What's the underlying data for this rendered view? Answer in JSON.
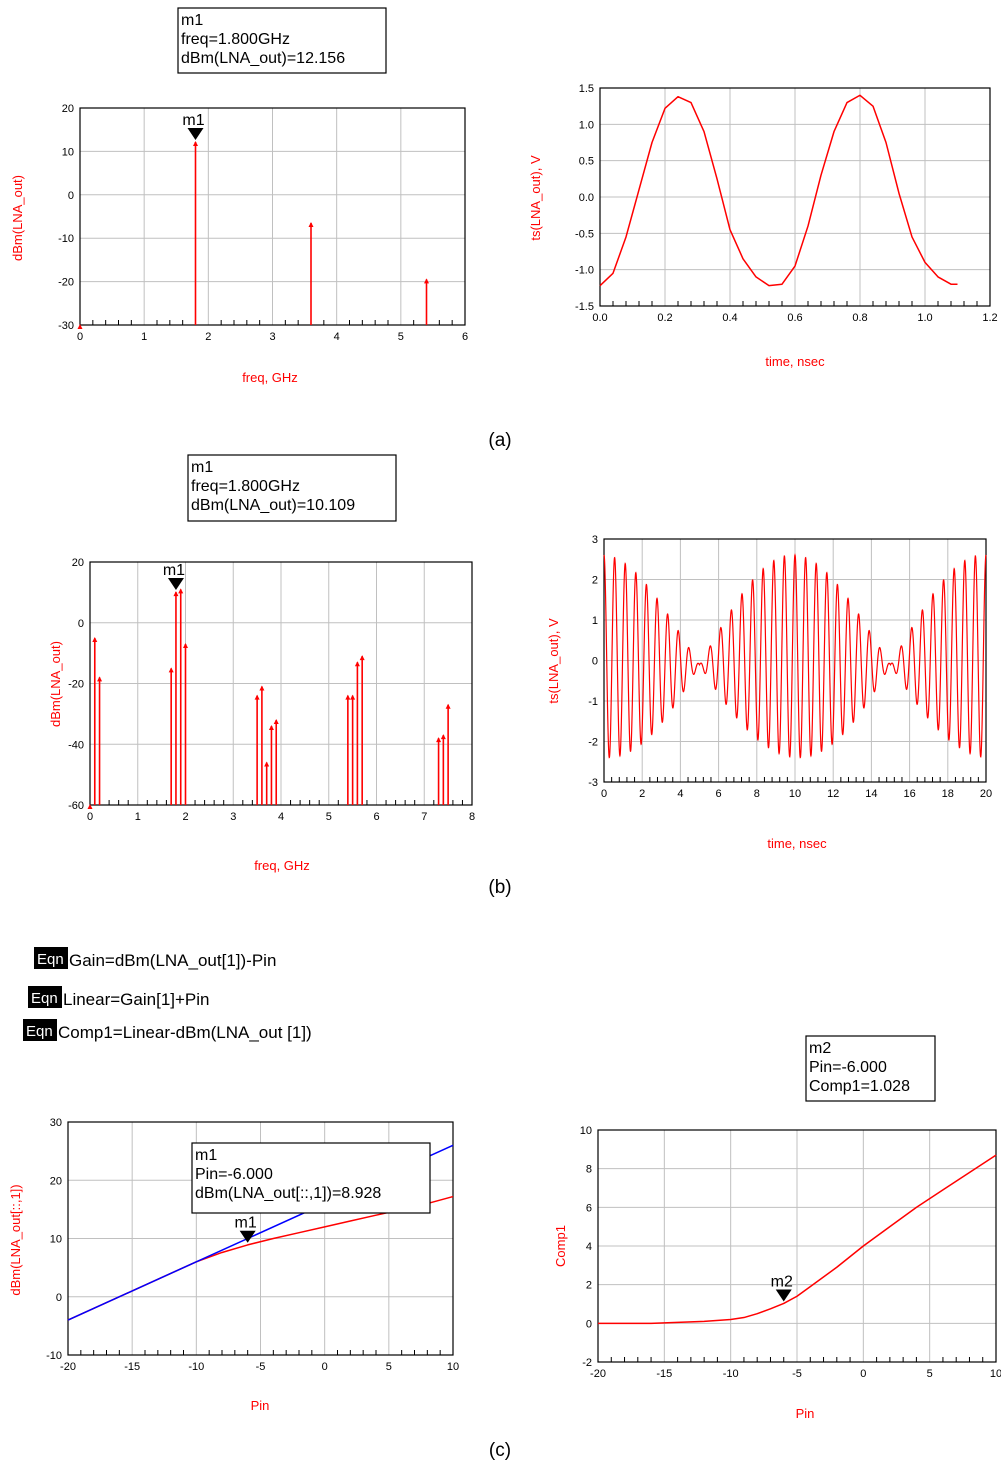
{
  "captions": [
    "(a)",
    "(b)",
    "(c)"
  ],
  "equations": {
    "badge": "Eqn",
    "lines": [
      "Gain=dBm(LNA_out[1])-Pin",
      "Linear=Gain[1]+Pin",
      "Comp1=Linear-dBm(LNA_out [1])"
    ]
  },
  "colors": {
    "trace_red": "#ff0000",
    "trace_blue": "#0000ff",
    "grid": "#c0c0c0"
  },
  "chart_data": [
    {
      "id": "a_spectrum",
      "type": "bar",
      "xlabel": "freq, GHz",
      "ylabel": "dBm(LNA_out)",
      "xlim": [
        0,
        6
      ],
      "ylim": [
        -30,
        20
      ],
      "xticks": [
        "0",
        "1",
        "2",
        "3",
        "4",
        "5",
        "6"
      ],
      "yticks": [
        "-30",
        "-20",
        "-10",
        "0",
        "10",
        "20"
      ],
      "x": [
        0,
        1.8,
        3.6,
        5.4
      ],
      "values": [
        -30,
        12.156,
        -6.5,
        -19.5
      ],
      "marker": {
        "name": "m1",
        "x": 1.8,
        "y": 12.156,
        "lines": [
          "m1",
          "freq=1.800GHz",
          "dBm(LNA_out)=12.156"
        ]
      }
    },
    {
      "id": "a_time",
      "type": "line",
      "xlabel": "time, nsec",
      "ylabel": "ts(LNA_out), V",
      "xlim": [
        0,
        1.2
      ],
      "ylim": [
        -1.5,
        1.5
      ],
      "xticks": [
        "0.0",
        "0.2",
        "0.4",
        "0.6",
        "0.8",
        "1.0",
        "1.2"
      ],
      "yticks": [
        "-1.5",
        "-1.0",
        "-0.5",
        "0.0",
        "0.5",
        "1.0",
        "1.5"
      ],
      "series": [
        {
          "x": [
            0,
            0.04,
            0.08,
            0.12,
            0.16,
            0.2,
            0.24,
            0.28,
            0.32,
            0.36,
            0.4,
            0.44,
            0.48,
            0.52,
            0.56,
            0.6,
            0.64,
            0.68,
            0.72,
            0.76,
            0.8,
            0.84,
            0.88,
            0.92,
            0.96,
            1.0,
            1.04,
            1.08,
            1.1
          ],
          "values": [
            -1.22,
            -1.05,
            -0.55,
            0.1,
            0.75,
            1.22,
            1.38,
            1.3,
            0.9,
            0.25,
            -0.45,
            -0.85,
            -1.1,
            -1.22,
            -1.2,
            -0.95,
            -0.4,
            0.3,
            0.9,
            1.3,
            1.4,
            1.25,
            0.75,
            0.05,
            -0.55,
            -0.9,
            -1.1,
            -1.2,
            -1.2
          ]
        }
      ]
    },
    {
      "id": "b_spectrum",
      "type": "bar",
      "xlabel": "freq, GHz",
      "ylabel": "dBm(LNA_out)",
      "xlim": [
        0,
        8
      ],
      "ylim": [
        -60,
        20
      ],
      "xticks": [
        "0",
        "1",
        "2",
        "3",
        "4",
        "5",
        "6",
        "7",
        "8"
      ],
      "yticks": [
        "-60",
        "-40",
        "-20",
        "0",
        "20"
      ],
      "x": [
        0.0,
        0.1,
        0.2,
        1.7,
        1.8,
        1.9,
        2.0,
        3.5,
        3.6,
        3.7,
        3.8,
        3.9,
        5.4,
        5.5,
        5.6,
        5.7,
        7.3,
        7.4,
        7.5
      ],
      "values": [
        -60,
        -5,
        -18,
        -15,
        10.1,
        11,
        -7,
        -24,
        -21,
        -46,
        -34,
        -32,
        -24,
        -24,
        -13,
        -11,
        -38,
        -37,
        -27
      ],
      "marker": {
        "name": "m1",
        "x": 1.8,
        "y": 10.109,
        "lines": [
          "m1",
          "freq=1.800GHz",
          "dBm(LNA_out)=10.109"
        ]
      }
    },
    {
      "id": "b_time",
      "type": "line",
      "xlabel": "time, nsec",
      "ylabel": "ts(LNA_out), V",
      "xlim": [
        0,
        20
      ],
      "ylim": [
        -3,
        3
      ],
      "xticks": [
        "0",
        "2",
        "4",
        "6",
        "8",
        "10",
        "12",
        "14",
        "16",
        "18",
        "20"
      ],
      "yticks": [
        "-3",
        "-2",
        "-1",
        "0",
        "1",
        "2",
        "3"
      ],
      "series": [
        {
          "carrier_ghz": 1.8,
          "beat_period_ns": 10,
          "peak_v": 2.5
        }
      ]
    },
    {
      "id": "c_gain",
      "type": "line",
      "xlabel": "Pin",
      "ylabel": "dBm(LNA_out[::,1])",
      "xlim": [
        -20,
        10
      ],
      "ylim": [
        -10,
        30
      ],
      "xticks": [
        "-20",
        "-15",
        "-10",
        "-5",
        "0",
        "5",
        "10"
      ],
      "yticks": [
        "-10",
        "0",
        "10",
        "20",
        "30"
      ],
      "series": [
        {
          "color": "red",
          "x": [
            -20,
            -15,
            -12,
            -10,
            -8,
            -6,
            -4,
            -2,
            0,
            2,
            4,
            6,
            8,
            10
          ],
          "values": [
            -4,
            1,
            4,
            6,
            7.6,
            8.9,
            10,
            11,
            12,
            13,
            14,
            15,
            16,
            17.2
          ]
        },
        {
          "color": "blue",
          "x": [
            -20,
            10
          ],
          "values": [
            -4,
            26
          ]
        }
      ],
      "marker": {
        "name": "m1",
        "x": -6,
        "y": 8.928,
        "lines": [
          "m1",
          "Pin=-6.000",
          "dBm(LNA_out[::,1])=8.928"
        ]
      }
    },
    {
      "id": "c_comp",
      "type": "line",
      "xlabel": "Pin",
      "ylabel": "Comp1",
      "xlim": [
        -20,
        10
      ],
      "ylim": [
        -2,
        10
      ],
      "xticks": [
        "-20",
        "-15",
        "-10",
        "-5",
        "0",
        "5",
        "10"
      ],
      "yticks": [
        "-2",
        "0",
        "2",
        "4",
        "6",
        "8",
        "10"
      ],
      "series": [
        {
          "x": [
            -20,
            -16,
            -14,
            -12,
            -10,
            -9,
            -8,
            -7,
            -6,
            -5,
            -4,
            -2,
            0,
            2,
            4,
            6,
            8,
            10
          ],
          "values": [
            0,
            0,
            0.05,
            0.1,
            0.2,
            0.3,
            0.5,
            0.75,
            1.028,
            1.4,
            1.9,
            2.9,
            4.0,
            5.0,
            6.0,
            6.9,
            7.8,
            8.7
          ]
        }
      ],
      "marker": {
        "name": "m2",
        "x": -6,
        "y": 1.028,
        "lines": [
          "m2",
          "Pin=-6.000",
          "Comp1=1.028"
        ]
      }
    }
  ]
}
